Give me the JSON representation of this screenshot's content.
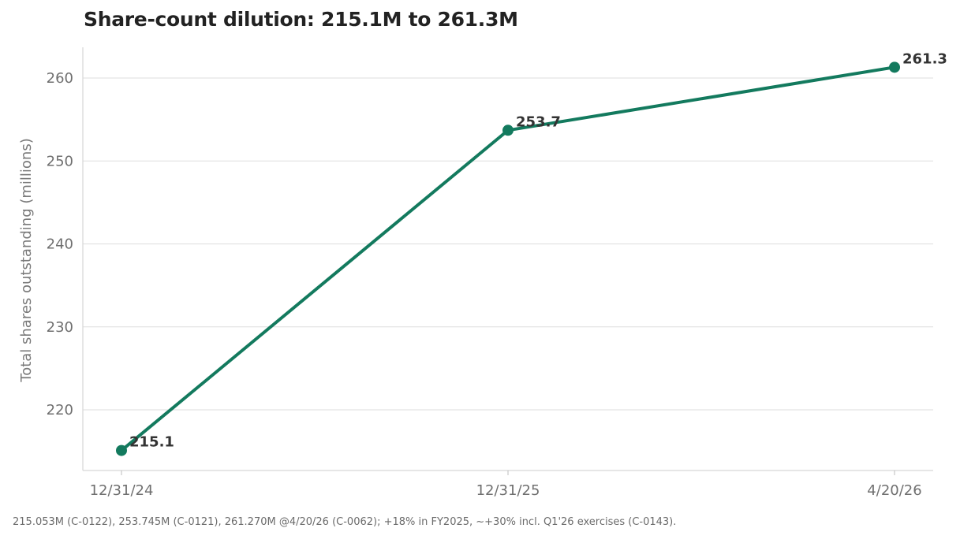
{
  "chart_data": {
    "type": "line",
    "title": "Share-count dilution: 215.1M to 261.3M",
    "xlabel": "",
    "ylabel": "Total shares outstanding (millions)",
    "ylim": [
      210,
      264
    ],
    "yticks": [
      220,
      230,
      240,
      250,
      260
    ],
    "categories": [
      "12/31/24",
      "12/31/25",
      "4/20/26"
    ],
    "x": [
      "2024-12-31",
      "2025-12-31",
      "2026-04-20"
    ],
    "series": [
      {
        "values": [
          215.1,
          253.7,
          261.3
        ],
        "labels": [
          "215.1",
          "253.7",
          "261.3"
        ],
        "color": "#137a5e"
      }
    ],
    "grid": "horizontal",
    "legend": "none"
  },
  "footnote": "215.053M (C-0122), 253.745M (C-0121), 261.270M @4/20/26 (C-0062); +18% in FY2025, ~+30% incl. Q1'26 exercises (C-0143)."
}
